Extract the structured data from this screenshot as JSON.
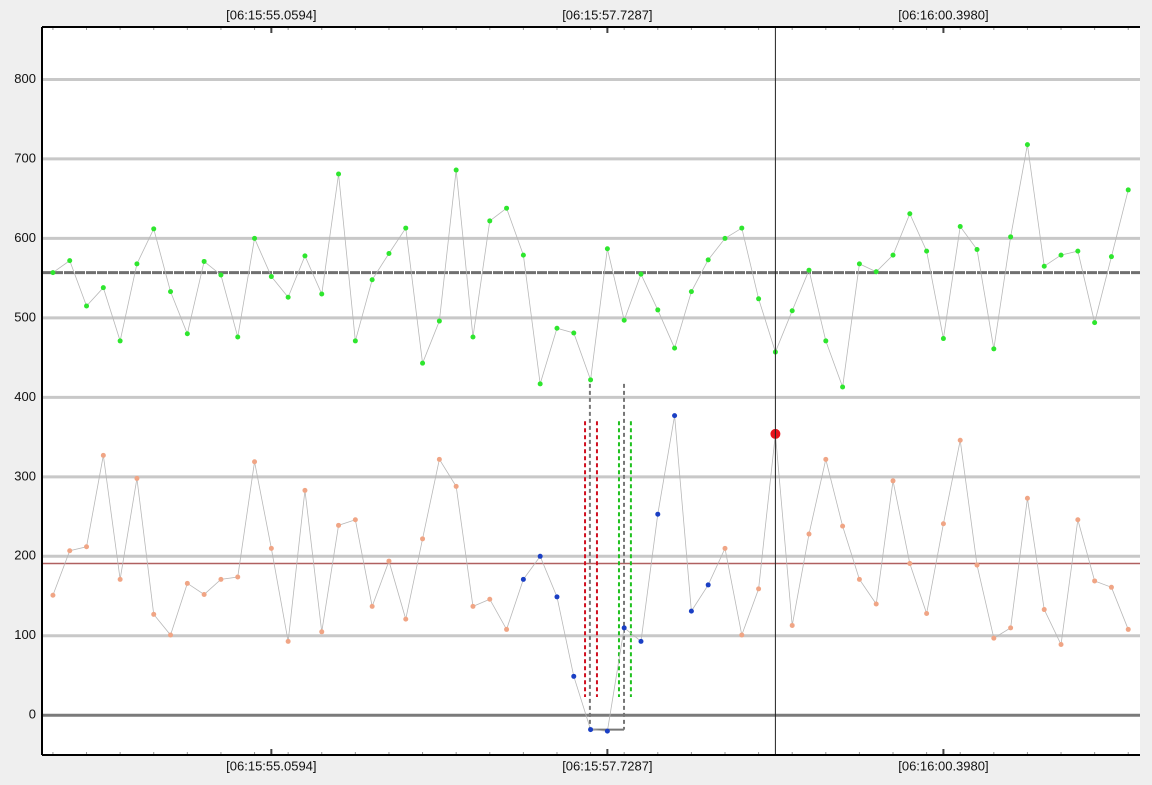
{
  "chart_data": {
    "type": "line",
    "xlim": [
      -0.65,
      64.7
    ],
    "ylim": [
      -50,
      866
    ],
    "yticks": [
      0,
      100,
      200,
      300,
      400,
      500,
      600,
      700,
      800
    ],
    "xticks": [
      {
        "value": 13,
        "label": "[06:15:55.0594]"
      },
      {
        "value": 33,
        "label": "[06:15:57.7287]"
      },
      {
        "value": 53,
        "label": "[06:16:00.3980]"
      }
    ],
    "grid": true,
    "line_color": "#b8b8b8",
    "series": [
      {
        "color": "#2ee62e",
        "values": [
          557,
          572,
          515,
          538,
          471,
          568,
          612,
          533,
          480,
          571,
          554,
          476,
          600,
          552,
          526,
          578,
          530,
          681,
          471,
          548,
          581,
          613,
          443,
          496,
          686,
          476,
          622,
          638,
          579,
          417,
          487,
          481,
          422,
          587,
          497,
          555,
          510,
          462,
          533,
          573,
          600,
          613,
          524,
          457,
          509,
          560,
          471,
          413,
          568,
          558,
          579,
          631,
          584,
          474,
          615,
          586,
          461,
          602,
          718,
          565,
          579,
          584,
          494,
          577,
          661
        ]
      },
      {
        "color": "#f0a585",
        "values": [
          151,
          207,
          212,
          327,
          171,
          298,
          127,
          101,
          166,
          152,
          171,
          174,
          319,
          210,
          93,
          283,
          105,
          239,
          246,
          137,
          194,
          121,
          222,
          322,
          288,
          137,
          146,
          108,
          171,
          200,
          149,
          49,
          -18,
          -20,
          110,
          93,
          253,
          377,
          131,
          164,
          210,
          101,
          159,
          354,
          113,
          228,
          322,
          238,
          171,
          140,
          295,
          191,
          128,
          241,
          346,
          189,
          97,
          110,
          273,
          133,
          89,
          246,
          169,
          161,
          108
        ],
        "point_colors": [
          "#f0a585",
          "#f0a585",
          "#f0a585",
          "#f0a585",
          "#f0a585",
          "#f0a585",
          "#f0a585",
          "#f0a585",
          "#f0a585",
          "#f0a585",
          "#f0a585",
          "#f0a585",
          "#f0a585",
          "#f0a585",
          "#f0a585",
          "#f0a585",
          "#f0a585",
          "#f0a585",
          "#f0a585",
          "#f0a585",
          "#f0a585",
          "#f0a585",
          "#f0a585",
          "#f0a585",
          "#f0a585",
          "#f0a585",
          "#f0a585",
          "#f0a585",
          "#1a3fc4",
          "#1a3fc4",
          "#1a3fc4",
          "#1a3fc4",
          "#1a3fc4",
          "#1a3fc4",
          "#1a3fc4",
          "#1a3fc4",
          "#1a3fc4",
          "#1a3fc4",
          "#1a3fc4",
          "#1a3fc4",
          "#f0a585",
          "#f0a585",
          "#f0a585",
          "#e8141c",
          "#f0a585",
          "#f0a585",
          "#f0a585",
          "#f0a585",
          "#f0a585",
          "#f0a585",
          "#f0a585",
          "#f0a585",
          "#f0a585",
          "#f0a585",
          "#f0a585",
          "#f0a585",
          "#f0a585",
          "#f0a585",
          "#f0a585",
          "#f0a585",
          "#f0a585",
          "#f0a585",
          "#f0a585",
          "#f0a585",
          "#f0a585"
        ]
      }
    ],
    "hlines": [
      {
        "value": 557,
        "color": "#707070"
      },
      {
        "value": 191,
        "color": "#b06060"
      }
    ],
    "vline": 43,
    "dashed_markers": [
      {
        "x": 31.67,
        "y": [
          370,
          23
        ],
        "color": "#d01020"
      },
      {
        "x": 32.38,
        "y": [
          370,
          23
        ],
        "color": "#d01020"
      },
      {
        "x": 31.96,
        "y": [
          417,
          -18
        ],
        "color": "#777777"
      },
      {
        "x": 33.99,
        "y": [
          417,
          -18
        ],
        "color": "#777777"
      },
      {
        "x": 33.69,
        "y": [
          370,
          23
        ],
        "color": "#1fc01f"
      },
      {
        "x": 34.4,
        "y": [
          370,
          23
        ],
        "color": "#1fc01f"
      }
    ]
  }
}
